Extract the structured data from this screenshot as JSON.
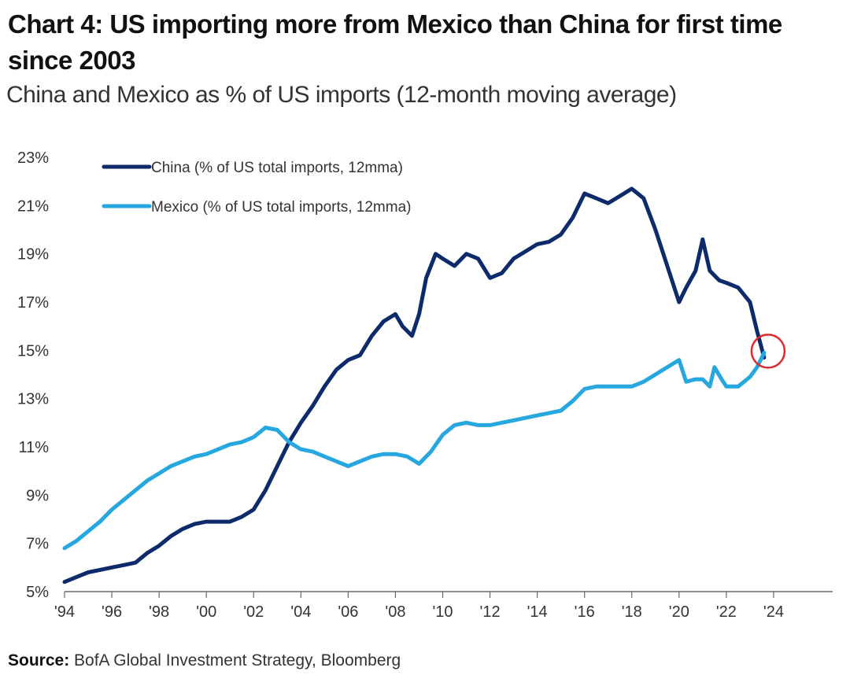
{
  "header": {
    "title": "Chart 4: US importing more from Mexico than China for first time since 2003",
    "subtitle": "China and Mexico as % of US imports (12-month moving average)"
  },
  "footer": {
    "source_label": "Source:",
    "source_text": "BofA Global Investment Strategy, Bloomberg"
  },
  "colors": {
    "china": "#0d2b6b",
    "mexico": "#27a7e0",
    "highlight_circle": "#e02a2a",
    "axis": "#666666"
  },
  "chart_data": {
    "type": "line",
    "title": "Chart 4: US importing more from Mexico than China for first time since 2003",
    "subtitle": "China and Mexico as % of US imports (12-month moving average)",
    "xlabel": "",
    "ylabel": "",
    "xlim": [
      1994,
      2026.5
    ],
    "ylim": [
      5,
      23
    ],
    "y_ticks": [
      5,
      7,
      9,
      11,
      13,
      15,
      17,
      19,
      21,
      23
    ],
    "y_tick_labels": [
      "5%",
      "7%",
      "9%",
      "11%",
      "13%",
      "15%",
      "17%",
      "19%",
      "21%",
      "23%"
    ],
    "x_ticks": [
      1994,
      1996,
      1998,
      2000,
      2002,
      2004,
      2006,
      2008,
      2010,
      2012,
      2014,
      2016,
      2018,
      2020,
      2022,
      2024
    ],
    "x_tick_labels": [
      "'94",
      "'96",
      "'98",
      "'00",
      "'02",
      "'04",
      "'06",
      "'08",
      "'10",
      "'12",
      "'14",
      "'16",
      "'18",
      "'20",
      "'22",
      "'24"
    ],
    "grid": false,
    "legend": "top-left",
    "annotation": "circle around 2023 crossover point",
    "annotation_point": [
      2023.6,
      14.9
    ],
    "series": [
      {
        "name": "China (% of US total imports, 12mma)",
        "color": "#0d2b6b",
        "x": [
          1994,
          1994.5,
          1995,
          1995.5,
          1996,
          1996.5,
          1997,
          1997.5,
          1998,
          1998.5,
          1999,
          1999.5,
          2000,
          2000.5,
          2001,
          2001.5,
          2002,
          2002.5,
          2003,
          2003.5,
          2004,
          2004.5,
          2005,
          2005.5,
          2006,
          2006.5,
          2007,
          2007.5,
          2008,
          2008.3,
          2008.7,
          2009,
          2009.3,
          2009.7,
          2010,
          2010.5,
          2011,
          2011.5,
          2012,
          2012.5,
          2013,
          2013.5,
          2014,
          2014.5,
          2015,
          2015.5,
          2016,
          2016.5,
          2017,
          2017.5,
          2018,
          2018.5,
          2019,
          2019.5,
          2020,
          2020.3,
          2020.7,
          2021,
          2021.3,
          2021.7,
          2022,
          2022.5,
          2023,
          2023.3,
          2023.6
        ],
        "values": [
          5.4,
          5.6,
          5.8,
          5.9,
          6.0,
          6.1,
          6.2,
          6.6,
          6.9,
          7.3,
          7.6,
          7.8,
          7.9,
          7.9,
          7.9,
          8.1,
          8.4,
          9.2,
          10.2,
          11.2,
          12.0,
          12.7,
          13.5,
          14.2,
          14.6,
          14.8,
          15.6,
          16.2,
          16.5,
          16.0,
          15.6,
          16.5,
          18.0,
          19.0,
          18.8,
          18.5,
          19.0,
          18.8,
          18.0,
          18.2,
          18.8,
          19.1,
          19.4,
          19.5,
          19.8,
          20.5,
          21.5,
          21.3,
          21.1,
          21.4,
          21.7,
          21.3,
          20.0,
          18.5,
          17.0,
          17.6,
          18.3,
          19.6,
          18.3,
          17.9,
          17.8,
          17.6,
          17.0,
          15.8,
          14.7
        ]
      },
      {
        "name": "Mexico (% of US total imports, 12mma)",
        "color": "#27a7e0",
        "x": [
          1994,
          1994.5,
          1995,
          1995.5,
          1996,
          1996.5,
          1997,
          1997.5,
          1998,
          1998.5,
          1999,
          1999.5,
          2000,
          2000.5,
          2001,
          2001.5,
          2002,
          2002.5,
          2003,
          2003.5,
          2004,
          2004.5,
          2005,
          2005.5,
          2006,
          2006.5,
          2007,
          2007.5,
          2008,
          2008.5,
          2009,
          2009.5,
          2010,
          2010.5,
          2011,
          2011.5,
          2012,
          2012.5,
          2013,
          2013.5,
          2014,
          2014.5,
          2015,
          2015.5,
          2016,
          2016.5,
          2017,
          2017.5,
          2018,
          2018.5,
          2019,
          2019.5,
          2020,
          2020.3,
          2020.7,
          2021,
          2021.3,
          2021.5,
          2021.8,
          2022,
          2022.5,
          2023,
          2023.3,
          2023.6
        ],
        "values": [
          6.8,
          7.1,
          7.5,
          7.9,
          8.4,
          8.8,
          9.2,
          9.6,
          9.9,
          10.2,
          10.4,
          10.6,
          10.7,
          10.9,
          11.1,
          11.2,
          11.4,
          11.8,
          11.7,
          11.2,
          10.9,
          10.8,
          10.6,
          10.4,
          10.2,
          10.4,
          10.6,
          10.7,
          10.7,
          10.6,
          10.3,
          10.8,
          11.5,
          11.9,
          12.0,
          11.9,
          11.9,
          12.0,
          12.1,
          12.2,
          12.3,
          12.4,
          12.5,
          12.9,
          13.4,
          13.5,
          13.5,
          13.5,
          13.5,
          13.7,
          14.0,
          14.3,
          14.6,
          13.7,
          13.8,
          13.8,
          13.5,
          14.3,
          13.8,
          13.5,
          13.5,
          13.9,
          14.3,
          14.9
        ]
      }
    ]
  }
}
